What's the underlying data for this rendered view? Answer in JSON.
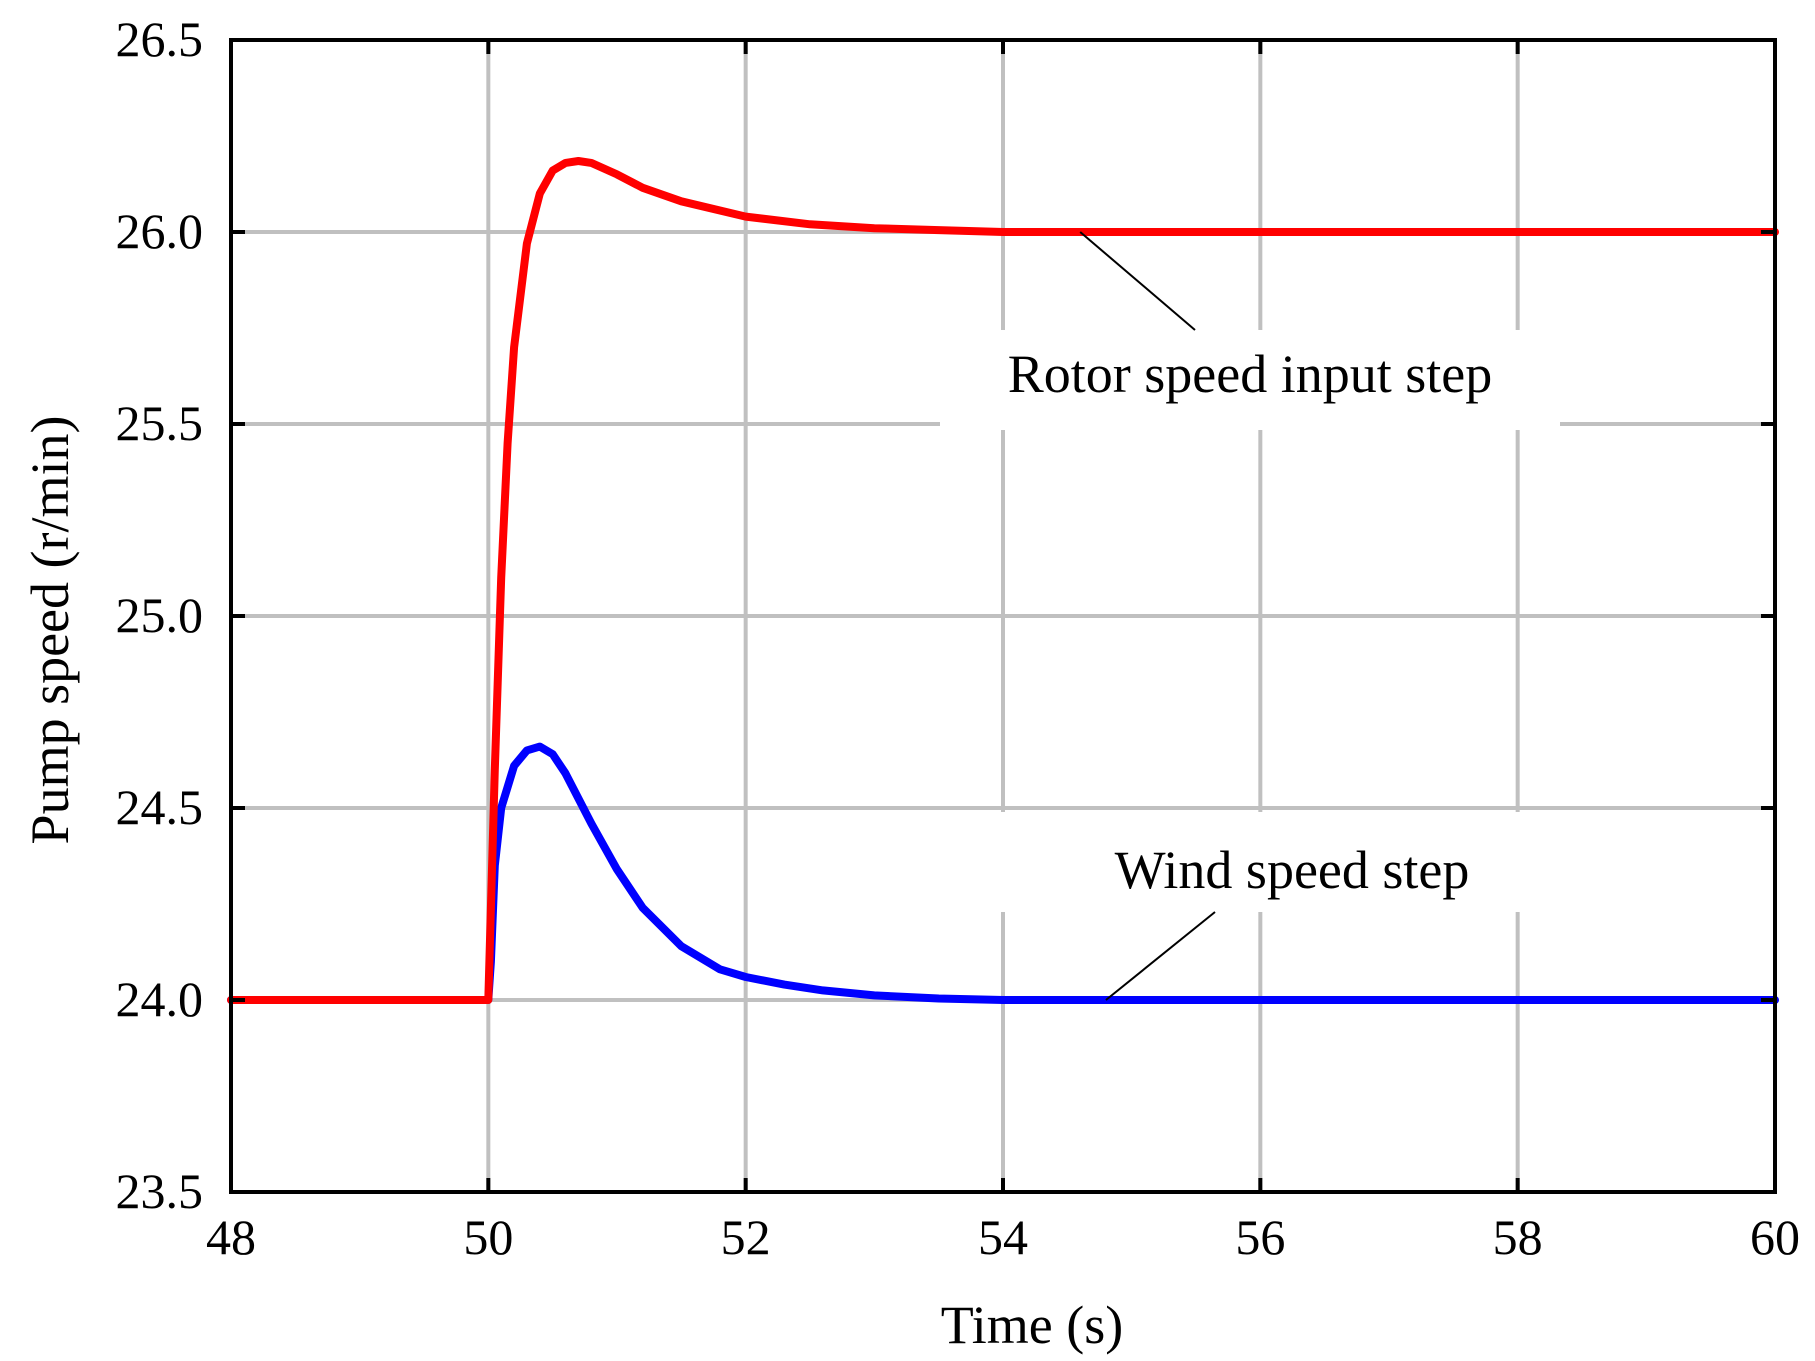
{
  "chart_data": {
    "type": "line",
    "title": "",
    "xlabel": "Time (s)",
    "ylabel": "Pump speed (r/min)",
    "xlim": [
      48,
      60
    ],
    "ylim": [
      23.5,
      26.5
    ],
    "grid": true,
    "x_ticks": [
      48,
      50,
      52,
      54,
      56,
      58,
      60
    ],
    "y_ticks": [
      "23.5",
      "24.0",
      "24.5",
      "25.0",
      "25.5",
      "26.0",
      "26.5"
    ],
    "series": [
      {
        "name": "Wind speed step",
        "color": "#0000ff",
        "x": [
          48,
          50,
          50.02,
          50.05,
          50.1,
          50.2,
          50.3,
          50.4,
          50.5,
          50.6,
          50.8,
          51.0,
          51.2,
          51.5,
          51.8,
          52.0,
          52.3,
          52.6,
          53.0,
          53.5,
          54.0,
          55.0,
          60
        ],
        "y": [
          24.0,
          24.0,
          24.1,
          24.35,
          24.5,
          24.61,
          24.65,
          24.66,
          24.64,
          24.59,
          24.46,
          24.34,
          24.24,
          24.14,
          24.08,
          24.06,
          24.04,
          24.025,
          24.012,
          24.004,
          24.0,
          24.0,
          24.0
        ]
      },
      {
        "name": "Rotor speed input step",
        "color": "#ff0000",
        "x": [
          48,
          50,
          50.05,
          50.1,
          50.15,
          50.2,
          50.3,
          50.4,
          50.5,
          50.6,
          50.7,
          50.8,
          51.0,
          51.2,
          51.5,
          52.0,
          52.5,
          53.0,
          53.5,
          54.0,
          55.0,
          60
        ],
        "y": [
          24.0,
          24.0,
          24.6,
          25.1,
          25.45,
          25.7,
          25.97,
          26.1,
          26.16,
          26.18,
          26.185,
          26.18,
          26.15,
          26.115,
          26.08,
          26.04,
          26.02,
          26.01,
          26.005,
          26.0,
          26.0,
          26.0
        ]
      }
    ],
    "annotations": [
      {
        "text": "Rotor speed input step",
        "series": "Rotor speed input step",
        "anchor_x": 54.6,
        "anchor_y": 26.0
      },
      {
        "text": "Wind speed step",
        "series": "Wind speed step",
        "anchor_x": 54.8,
        "anchor_y": 24.0
      }
    ]
  }
}
